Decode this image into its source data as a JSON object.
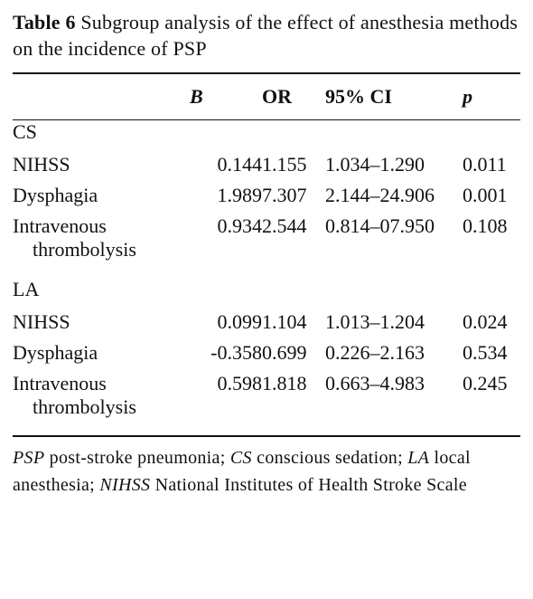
{
  "caption": {
    "label": "Table 6",
    "text": "Subgroup analysis of the effect of anesthesia methods on the incidence of PSP"
  },
  "header": {
    "b": "B",
    "or": "OR",
    "ci": "95% CI",
    "p": "p"
  },
  "groups": [
    {
      "name": "CS",
      "rows": [
        {
          "name": "NIHSS",
          "name2": "",
          "b": "0.144",
          "or": "1.155",
          "ci": "1.034–1.290",
          "p": "0.011"
        },
        {
          "name": "Dysphagia",
          "name2": "",
          "b": "1.989",
          "or": "7.307",
          "ci": "2.144–24.906",
          "p": "0.001"
        },
        {
          "name": "Intravenous",
          "name2": "thrombolysis",
          "b": "0.934",
          "or": "2.544",
          "ci": "0.814–07.950",
          "p": "0.108"
        }
      ]
    },
    {
      "name": "LA",
      "rows": [
        {
          "name": "NIHSS",
          "name2": "",
          "b": "0.099",
          "or": "1.104",
          "ci": "1.013–1.204",
          "p": "0.024"
        },
        {
          "name": "Dysphagia",
          "name2": "",
          "b": "-0.358",
          "or": "0.699",
          "ci": "0.226–2.163",
          "p": "0.534"
        },
        {
          "name": "Intravenous",
          "name2": "thrombolysis",
          "b": "0.598",
          "or": "1.818",
          "ci": "0.663–4.983",
          "p": "0.245"
        }
      ]
    }
  ],
  "footnote": {
    "psp_abbr": "PSP",
    "psp_def": "post-stroke pneumonia;",
    "cs_abbr": "CS",
    "cs_def": "conscious sedation;",
    "la_abbr": "LA",
    "la_def": "local anesthesia;",
    "nihss_abbr": "NIHSS",
    "nihss_def": "National Institutes of Health Stroke Scale"
  }
}
